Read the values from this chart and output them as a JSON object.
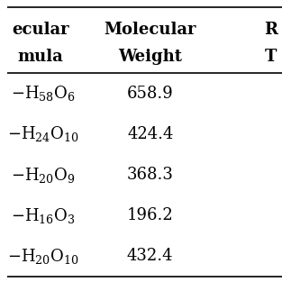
{
  "col1_header_line1": "ecular",
  "col1_header_line2": "mula",
  "col2_header_line1": "Molecular",
  "col2_header_line2": "Weight",
  "col3_header_line1": "R",
  "col3_header_line2": "T",
  "rows": [
    {
      "formula_prefix": "−H",
      "formula_sub1": "58",
      "formula_mid": "O",
      "formula_sub2": "6",
      "weight": "658.9"
    },
    {
      "formula_prefix": "−H",
      "formula_sub1": "24",
      "formula_mid": "O",
      "formula_sub2": "10",
      "weight": "424.4"
    },
    {
      "formula_prefix": "−H",
      "formula_sub1": "20",
      "formula_mid": "O",
      "formula_sub2": "9",
      "weight": "368.3"
    },
    {
      "formula_prefix": "−H",
      "formula_sub1": "16",
      "formula_mid": "O",
      "formula_sub2": "3",
      "weight": "196.2"
    },
    {
      "formula_prefix": "−H",
      "formula_sub1": "20",
      "formula_mid": "O",
      "formula_sub2": "10",
      "weight": "432.4"
    }
  ],
  "formula_col1": [
    "H₅₈O₆",
    "H₂₄O₁₀",
    "H₂₀O₉",
    "H₁₆O₃",
    "H₂₀O₁₀"
  ],
  "mol_weights": [
    "658.9",
    "424.4",
    "368.3",
    "196.2",
    "432.4"
  ],
  "background_color": "#ffffff",
  "text_color": "#000000",
  "font_size": 11,
  "header_font_size": 11
}
